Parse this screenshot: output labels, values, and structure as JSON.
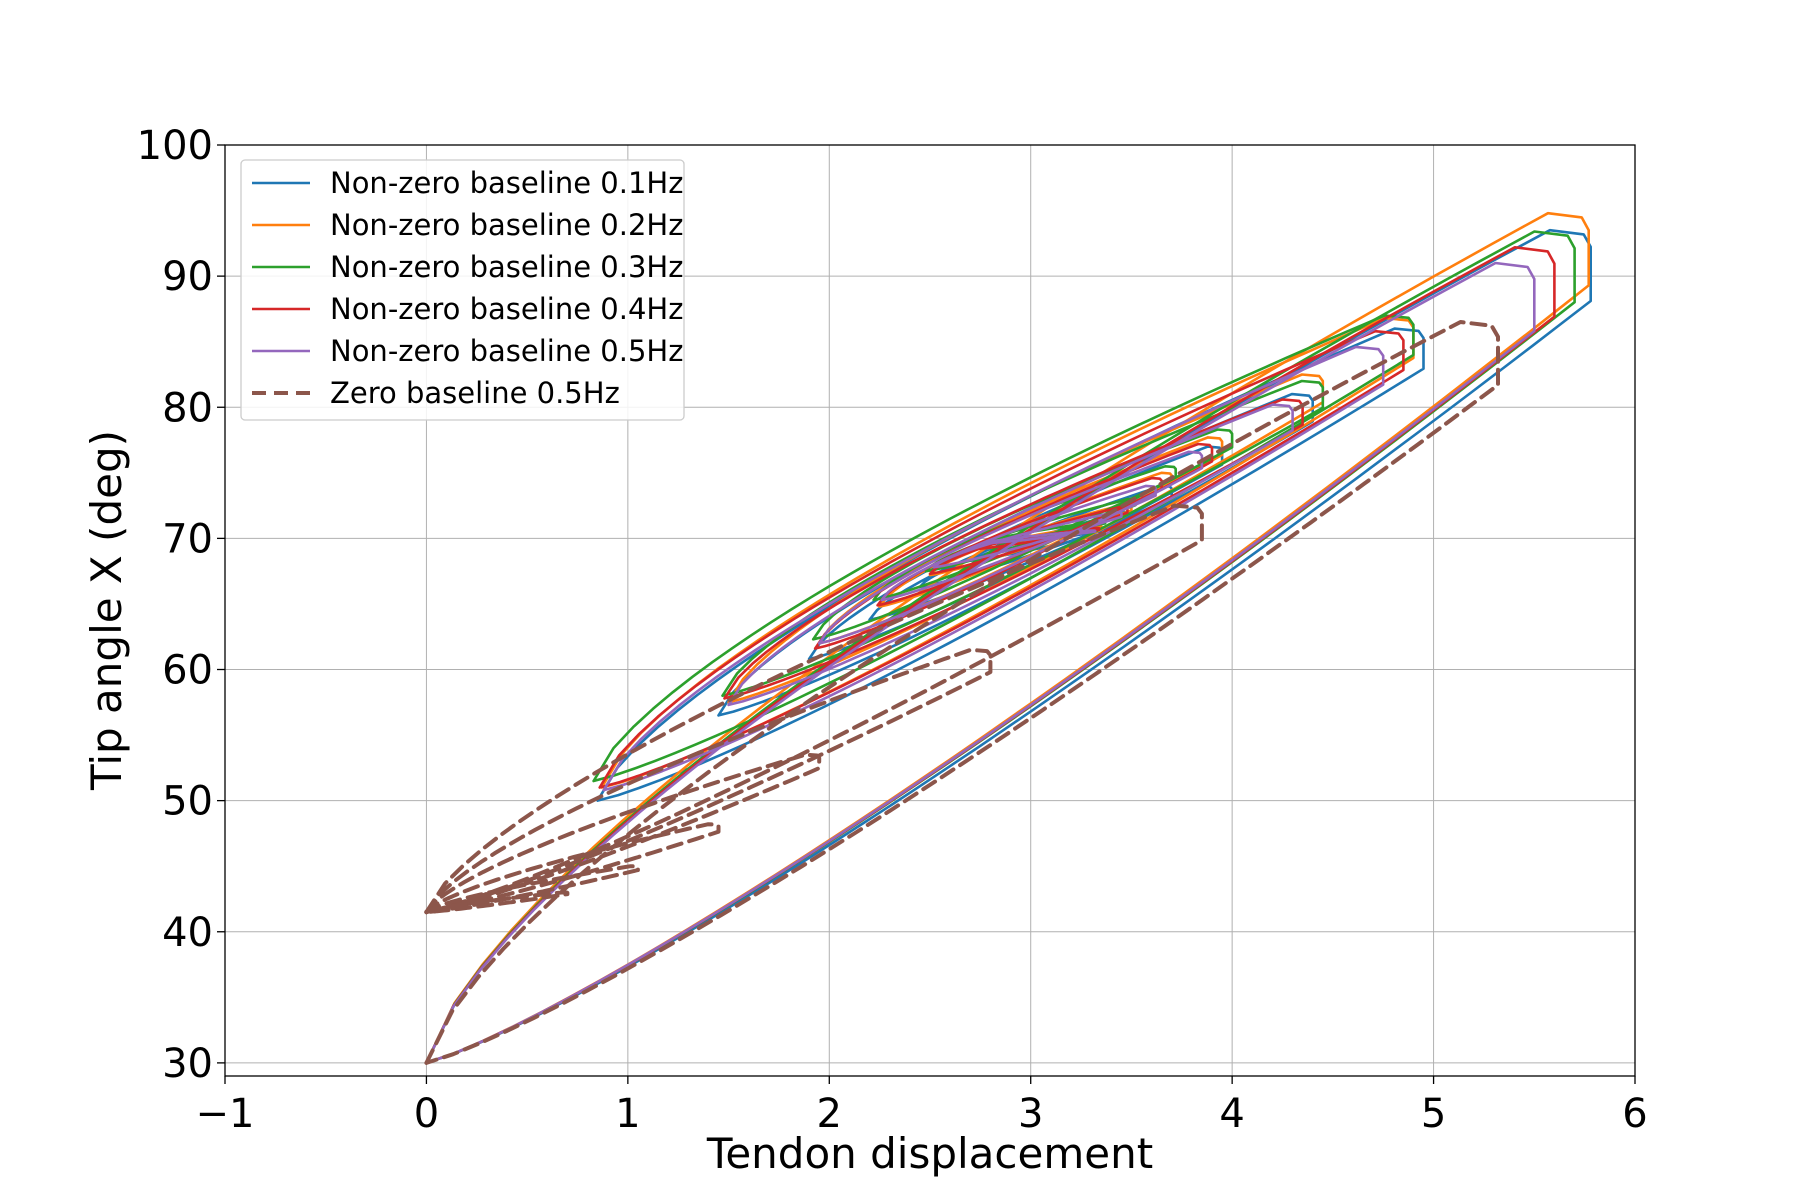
{
  "chart_data": {
    "type": "line",
    "title": "",
    "xlabel": "Tendon displacement",
    "ylabel": "Tip angle X (deg)",
    "xlim": [
      -1,
      6
    ],
    "ylim": [
      29,
      100
    ],
    "xticks": [
      -1,
      0,
      1,
      2,
      3,
      4,
      5,
      6
    ],
    "yticks": [
      30,
      40,
      50,
      60,
      70,
      80,
      90,
      100
    ],
    "x_tick_labels": [
      "−1",
      "0",
      "1",
      "2",
      "3",
      "4",
      "5",
      "6"
    ],
    "y_tick_labels": [
      "30",
      "40",
      "50",
      "60",
      "70",
      "80",
      "90",
      "100"
    ],
    "grid": true,
    "legend_position": "top-left",
    "series": [
      {
        "name": "Non-zero baseline 0.1Hz",
        "color": "#1f77b4",
        "style": "solid",
        "loops": [
          {
            "xmin": 0.0,
            "xmax": 5.78,
            "ymin": 30.0,
            "ymax": 93.5
          },
          {
            "xmin": 0.85,
            "xmax": 4.95,
            "ymin": 50.0,
            "ymax": 86.0
          },
          {
            "xmin": 1.45,
            "xmax": 4.4,
            "ymin": 56.5,
            "ymax": 81.0
          },
          {
            "xmin": 1.9,
            "xmax": 3.95,
            "ymin": 60.8,
            "ymax": 77.0
          },
          {
            "xmin": 2.2,
            "xmax": 3.7,
            "ymin": 63.8,
            "ymax": 74.0
          },
          {
            "xmin": 2.45,
            "xmax": 3.5,
            "ymin": 66.3,
            "ymax": 72.0
          },
          {
            "xmin": 2.7,
            "xmax": 3.35,
            "ymin": 68.3,
            "ymax": 70.5
          }
        ]
      },
      {
        "name": "Non-zero baseline 0.2Hz",
        "color": "#ff7f0e",
        "style": "solid",
        "loops": [
          {
            "xmin": 0.0,
            "xmax": 5.77,
            "ymin": 30.0,
            "ymax": 94.8
          },
          {
            "xmin": 0.87,
            "xmax": 4.9,
            "ymin": 51.0,
            "ymax": 86.8
          },
          {
            "xmin": 1.5,
            "xmax": 4.45,
            "ymin": 57.5,
            "ymax": 82.5
          },
          {
            "xmin": 1.95,
            "xmax": 3.95,
            "ymin": 62.0,
            "ymax": 77.7
          },
          {
            "xmin": 2.25,
            "xmax": 3.7,
            "ymin": 64.8,
            "ymax": 75.0
          },
          {
            "xmin": 2.5,
            "xmax": 3.5,
            "ymin": 67.2,
            "ymax": 72.6
          },
          {
            "xmin": 2.75,
            "xmax": 3.35,
            "ymin": 69.2,
            "ymax": 71.0
          }
        ]
      },
      {
        "name": "Non-zero baseline 0.3Hz",
        "color": "#2ca02c",
        "style": "solid",
        "loops": [
          {
            "xmin": 0.0,
            "xmax": 5.7,
            "ymin": 30.0,
            "ymax": 93.4
          },
          {
            "xmin": 0.83,
            "xmax": 4.9,
            "ymin": 51.5,
            "ymax": 87.0
          },
          {
            "xmin": 1.47,
            "xmax": 4.45,
            "ymin": 58.0,
            "ymax": 82.0
          },
          {
            "xmin": 1.92,
            "xmax": 4.0,
            "ymin": 62.3,
            "ymax": 78.3
          },
          {
            "xmin": 2.22,
            "xmax": 3.72,
            "ymin": 65.3,
            "ymax": 75.5
          },
          {
            "xmin": 2.48,
            "xmax": 3.52,
            "ymin": 67.5,
            "ymax": 73.0
          },
          {
            "xmin": 2.73,
            "xmax": 3.37,
            "ymin": 69.5,
            "ymax": 71.3
          }
        ]
      },
      {
        "name": "Non-zero baseline 0.4Hz",
        "color": "#d62728",
        "style": "solid",
        "loops": [
          {
            "xmin": 0.0,
            "xmax": 5.6,
            "ymin": 30.0,
            "ymax": 92.2
          },
          {
            "xmin": 0.86,
            "xmax": 4.85,
            "ymin": 51.0,
            "ymax": 85.8
          },
          {
            "xmin": 1.48,
            "xmax": 4.35,
            "ymin": 57.8,
            "ymax": 80.6
          },
          {
            "xmin": 1.93,
            "xmax": 3.9,
            "ymin": 61.6,
            "ymax": 77.2
          },
          {
            "xmin": 2.24,
            "xmax": 3.65,
            "ymin": 64.9,
            "ymax": 74.6
          },
          {
            "xmin": 2.5,
            "xmax": 3.48,
            "ymin": 67.3,
            "ymax": 72.4
          },
          {
            "xmin": 2.74,
            "xmax": 3.34,
            "ymin": 69.2,
            "ymax": 70.8
          }
        ]
      },
      {
        "name": "Non-zero baseline 0.5Hz",
        "color": "#9467bd",
        "style": "solid",
        "loops": [
          {
            "xmin": 0.0,
            "xmax": 5.5,
            "ymin": 30.0,
            "ymax": 91.0
          },
          {
            "xmin": 0.88,
            "xmax": 4.75,
            "ymin": 50.8,
            "ymax": 84.6
          },
          {
            "xmin": 1.5,
            "xmax": 4.3,
            "ymin": 57.3,
            "ymax": 80.2
          },
          {
            "xmin": 1.95,
            "xmax": 3.85,
            "ymin": 62.0,
            "ymax": 76.6
          },
          {
            "xmin": 2.26,
            "xmax": 3.62,
            "ymin": 65.3,
            "ymax": 74.0
          },
          {
            "xmin": 2.52,
            "xmax": 3.45,
            "ymin": 67.8,
            "ymax": 72.0
          },
          {
            "xmin": 2.76,
            "xmax": 3.32,
            "ymin": 69.6,
            "ymax": 70.6
          }
        ]
      },
      {
        "name": "Zero baseline 0.5Hz",
        "color": "#8c564b",
        "style": "dashed",
        "loops": [
          {
            "xmin": 0.0,
            "xmax": 5.32,
            "ymin": 30.0,
            "ymax": 86.5
          },
          {
            "xmin": 0.0,
            "xmax": 3.85,
            "ymin": 41.5,
            "ymax": 72.5
          },
          {
            "xmin": 0.0,
            "xmax": 2.8,
            "ymin": 41.5,
            "ymax": 61.5
          },
          {
            "xmin": 0.0,
            "xmax": 1.95,
            "ymin": 41.5,
            "ymax": 53.5
          },
          {
            "xmin": 0.0,
            "xmax": 1.45,
            "ymin": 41.5,
            "ymax": 48.2
          },
          {
            "xmin": 0.0,
            "xmax": 1.05,
            "ymin": 41.5,
            "ymax": 45.0
          },
          {
            "xmin": 0.0,
            "xmax": 0.7,
            "ymin": 41.5,
            "ymax": 43.0
          }
        ]
      }
    ]
  }
}
